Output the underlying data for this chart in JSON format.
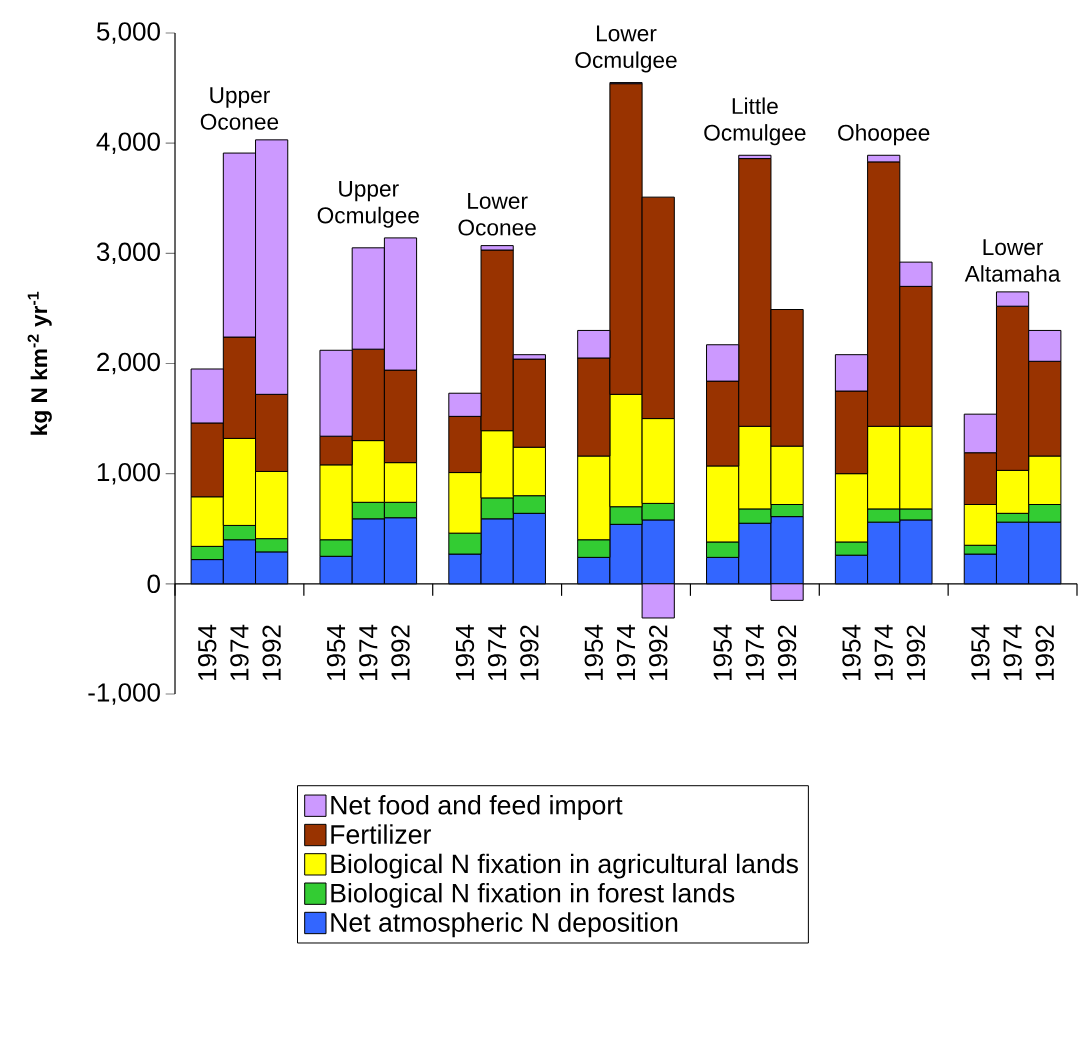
{
  "chart_data": {
    "type": "bar",
    "stacked": true,
    "ylabel": "kg N km$^{-2}$ yr$^{-1}$",
    "categories": [
      "1954",
      "1974",
      "1992",
      null,
      "1954",
      "1974",
      "1992",
      null,
      "1954",
      "1974",
      "1992",
      null,
      "1954",
      "1974",
      "1992",
      null,
      "1954",
      "1974",
      "1992",
      null,
      "1954",
      "1974",
      "1992",
      null,
      "1954",
      "1974",
      "1992"
    ],
    "series": [
      {
        "name": "Net atmospheric N deposition",
        "color": "#3366ff",
        "values": [
          220,
          400,
          290,
          null,
          250,
          590,
          600,
          null,
          270,
          590,
          640,
          null,
          240,
          540,
          580,
          null,
          240,
          550,
          610,
          null,
          260,
          560,
          580,
          null,
          270,
          560,
          560
        ]
      },
      {
        "name": "Biological N fixation in forest lands",
        "color": "#33cc33",
        "values": [
          120,
          130,
          120,
          null,
          150,
          150,
          140,
          null,
          190,
          190,
          160,
          null,
          160,
          160,
          150,
          null,
          140,
          130,
          110,
          null,
          120,
          120,
          100,
          null,
          80,
          80,
          160
        ]
      },
      {
        "name": "Biological N fixation in agricultural lands",
        "color": "#ffff00",
        "values": [
          450,
          790,
          610,
          null,
          680,
          560,
          360,
          null,
          550,
          610,
          440,
          null,
          760,
          1020,
          770,
          null,
          690,
          750,
          530,
          null,
          620,
          750,
          750,
          null,
          370,
          390,
          440
        ]
      },
      {
        "name": "Fertilizer",
        "color": "#993300",
        "values": [
          670,
          920,
          700,
          null,
          260,
          830,
          840,
          null,
          510,
          1640,
          800,
          null,
          890,
          2820,
          2010,
          null,
          770,
          2430,
          1240,
          null,
          750,
          2400,
          1270,
          null,
          470,
          1490,
          860
        ]
      },
      {
        "name": "Net food and feed import",
        "color": "#cc99ff",
        "values": [
          490,
          1670,
          2310,
          null,
          780,
          920,
          1200,
          null,
          210,
          40,
          40,
          null,
          250,
          10,
          -310,
          null,
          330,
          30,
          -150,
          null,
          330,
          60,
          220,
          null,
          350,
          130,
          280
        ]
      }
    ],
    "ylim": [
      -1000,
      5000
    ],
    "yticks": [
      {
        "value": -1000,
        "label": "-1,000"
      },
      0,
      {
        "value": 1000,
        "label": "1,000"
      },
      {
        "value": 2000,
        "label": "2,000"
      },
      {
        "value": 3000,
        "label": "3,000"
      },
      {
        "value": 4000,
        "label": "4,000"
      },
      {
        "value": 5000,
        "label": "5,000"
      }
    ],
    "annotations": [
      "Upper Oconee",
      "Upper Ocmulgee",
      "Lower Oconee",
      "Lower Ocmulgee",
      "Little Ocmulgee",
      "Ohoopee",
      "Lower Altamaha"
    ],
    "legend": "bottom"
  }
}
